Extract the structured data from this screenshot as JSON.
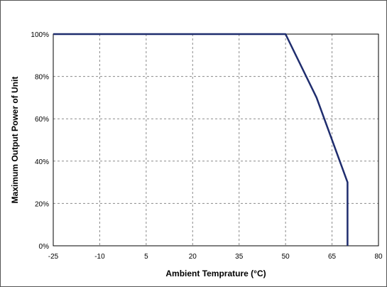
{
  "chart_data": {
    "type": "line",
    "title": "",
    "xlabel": "Ambient Temprature (°C)",
    "ylabel": "Maximum Output Power of Unit",
    "xlim": [
      -25,
      80
    ],
    "ylim": [
      0,
      100
    ],
    "x_ticks": [
      -25,
      -10,
      5,
      20,
      35,
      50,
      65,
      80
    ],
    "y_ticks": [
      0,
      20,
      40,
      60,
      80,
      100
    ],
    "x_tick_labels": [
      "-25",
      "-10",
      "5",
      "20",
      "35",
      "50",
      "65",
      "80"
    ],
    "y_tick_labels": [
      "0%",
      "20%",
      "40%",
      "60%",
      "80%",
      "100%"
    ],
    "grid": true,
    "grid_style": "dashed",
    "series": [
      {
        "color": "#1f2d6e",
        "x": [
          -25,
          50,
          60,
          70,
          70
        ],
        "y": [
          100,
          100,
          70,
          30,
          0
        ]
      }
    ]
  }
}
